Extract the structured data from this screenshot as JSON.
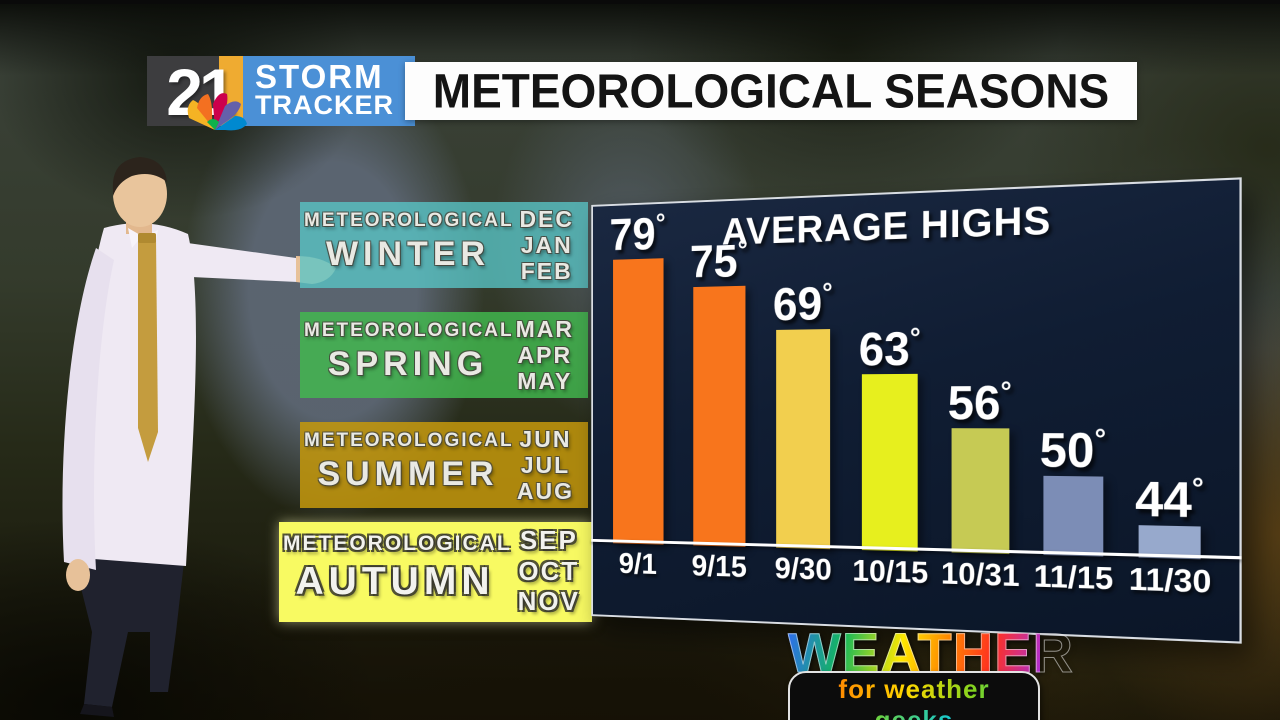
{
  "header": {
    "channel_number": "21",
    "brand": {
      "line1": "STORM",
      "line2": "TRACKER"
    },
    "title": "METEOROLOGICAL SEASONS"
  },
  "seasons": [
    {
      "kicker": "METEOROLOGICAL",
      "name": "WINTER",
      "months": [
        "DEC",
        "JAN",
        "FEB"
      ],
      "panel_color": "rgba(88,197,199,0.78)",
      "highlighted": false
    },
    {
      "kicker": "METEOROLOGICAL",
      "name": "SPRING",
      "months": [
        "MAR",
        "APR",
        "MAY"
      ],
      "panel_color": "rgba(66,185,78,0.82)",
      "highlighted": false
    },
    {
      "kicker": "METEOROLOGICAL",
      "name": "SUMMER",
      "months": [
        "JUN",
        "JUL",
        "AUG"
      ],
      "panel_color": "rgba(198,153,12,0.85)",
      "highlighted": false
    },
    {
      "kicker": "METEOROLOGICAL",
      "name": "AUTUMN",
      "months": [
        "SEP",
        "OCT",
        "NOV"
      ],
      "panel_color": "#f8fa62",
      "highlighted": true
    }
  ],
  "chart_data": {
    "type": "bar",
    "title": "AVERAGE HIGHS",
    "categories": [
      "9/1",
      "9/15",
      "9/30",
      "10/15",
      "10/31",
      "11/15",
      "11/30"
    ],
    "values": [
      79,
      75,
      69,
      63,
      56,
      50,
      44
    ],
    "unit": "°",
    "xlabel": "",
    "ylabel": "",
    "ylim": [
      40,
      85
    ],
    "grid": false,
    "legend_position": "none",
    "bar_colors": [
      "#f8751c",
      "#f8751c",
      "#f2cf4e",
      "#e7ef1e",
      "#c6ca54",
      "#7c8db6",
      "#97a9cc"
    ],
    "value_label_color": "#ffffff",
    "panel_background": "#101d33",
    "baseline_color": "#ffffff"
  },
  "footer_logo": {
    "line1": "WEATHER",
    "line2": "for weather geeks"
  }
}
